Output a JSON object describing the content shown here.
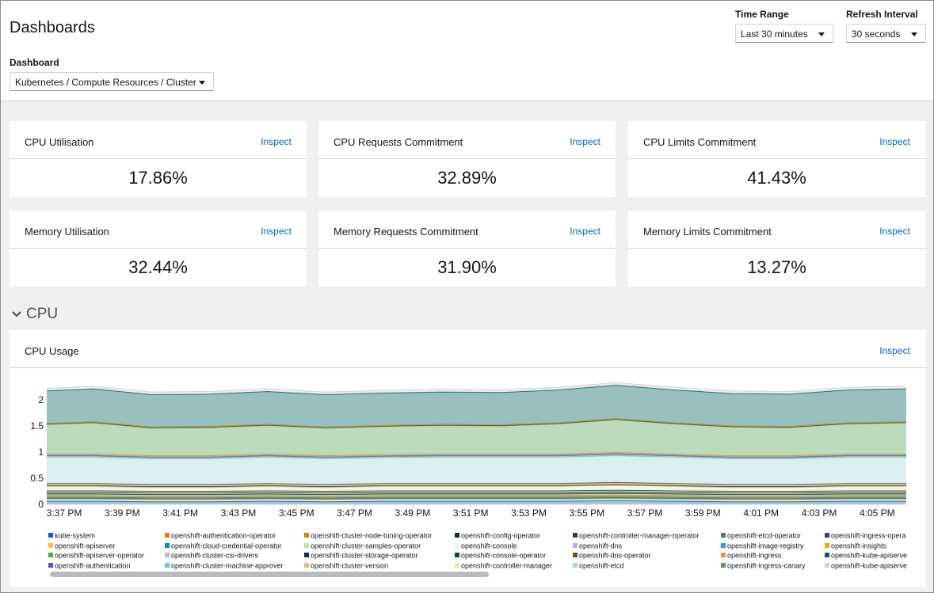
{
  "header": {
    "title": "Dashboards",
    "time_range_label": "Time Range",
    "time_range_value": "Last 30 minutes",
    "refresh_label": "Refresh Interval",
    "refresh_value": "30 seconds",
    "dashboard_label": "Dashboard",
    "dashboard_value": "Kubernetes / Compute Resources / Cluster"
  },
  "cards": [
    {
      "title": "CPU Utilisation",
      "link": "Inspect",
      "value": "17.86%"
    },
    {
      "title": "CPU Requests Commitment",
      "link": "Inspect",
      "value": "32.89%"
    },
    {
      "title": "CPU Limits Commitment",
      "link": "Inspect",
      "value": "41.43%"
    },
    {
      "title": "Memory Utilisation",
      "link": "Inspect",
      "value": "32.44%"
    },
    {
      "title": "Memory Requests Commitment",
      "link": "Inspect",
      "value": "31.90%"
    },
    {
      "title": "Memory Limits Commitment",
      "link": "Inspect",
      "value": "13.27%"
    }
  ],
  "section": "CPU",
  "panel": {
    "link": "Inspect"
  },
  "chart_data": {
    "type": "stacked-area",
    "title": "CPU Usage",
    "x": [
      936.4,
      938,
      940,
      942,
      944,
      946,
      948,
      950,
      952,
      954,
      956,
      958,
      960,
      962,
      964,
      966
    ],
    "xlim": [
      936.4,
      966
    ],
    "xticks": [
      {
        "value": 937,
        "label": "3:37 PM"
      },
      {
        "value": 939,
        "label": "3:39 PM"
      },
      {
        "value": 941,
        "label": "3:41 PM"
      },
      {
        "value": 943,
        "label": "3:43 PM"
      },
      {
        "value": 945,
        "label": "3:45 PM"
      },
      {
        "value": 947,
        "label": "3:47 PM"
      },
      {
        "value": 949,
        "label": "3:49 PM"
      },
      {
        "value": 951,
        "label": "3:51 PM"
      },
      {
        "value": 953,
        "label": "3:53 PM"
      },
      {
        "value": 955,
        "label": "3:55 PM"
      },
      {
        "value": 957,
        "label": "3:57 PM"
      },
      {
        "value": 959,
        "label": "3:59 PM"
      },
      {
        "value": 961,
        "label": "4:01 PM"
      },
      {
        "value": 963,
        "label": "4:03 PM"
      },
      {
        "value": 965,
        "label": "4:05 PM"
      }
    ],
    "ylim": [
      0,
      2.4
    ],
    "yticks": [
      0,
      0.5,
      1,
      1.5,
      2
    ],
    "series": [
      {
        "name": "kube-system",
        "color": "#0066cc",
        "values": [
          0.06,
          0.06,
          0.05,
          0.05,
          0.06,
          0.05,
          0.06,
          0.06,
          0.06,
          0.06,
          0.07,
          0.06,
          0.05,
          0.05,
          0.06,
          0.06
        ]
      },
      {
        "name": "openshift-apiserver",
        "color": "#f4c145",
        "values": [
          0.04,
          0.04,
          0.04,
          0.04,
          0.04,
          0.04,
          0.04,
          0.04,
          0.04,
          0.04,
          0.04,
          0.04,
          0.04,
          0.04,
          0.04,
          0.04
        ]
      },
      {
        "name": "openshift-apiserver-operator",
        "color": "#4cb140",
        "values": [
          0.01,
          0.01,
          0.01,
          0.01,
          0.01,
          0.01,
          0.01,
          0.01,
          0.01,
          0.01,
          0.01,
          0.01,
          0.01,
          0.01,
          0.01,
          0.01
        ]
      },
      {
        "name": "openshift-authentication",
        "color": "#5752d1",
        "values": [
          0.01,
          0.01,
          0.01,
          0.01,
          0.01,
          0.01,
          0.01,
          0.01,
          0.01,
          0.01,
          0.01,
          0.01,
          0.01,
          0.01,
          0.01,
          0.01
        ]
      },
      {
        "name": "openshift-authentication-operator",
        "color": "#ec7a08",
        "values": [
          0.01,
          0.01,
          0.01,
          0.01,
          0.01,
          0.01,
          0.01,
          0.01,
          0.01,
          0.01,
          0.01,
          0.01,
          0.01,
          0.01,
          0.01,
          0.01
        ]
      },
      {
        "name": "openshift-cloud-credential-operator",
        "color": "#009596",
        "values": [
          0.01,
          0.01,
          0.01,
          0.01,
          0.01,
          0.01,
          0.01,
          0.01,
          0.01,
          0.01,
          0.01,
          0.01,
          0.01,
          0.01,
          0.01,
          0.01
        ]
      },
      {
        "name": "openshift-cluster-csi-drivers",
        "color": "#b8bbbe",
        "values": [
          0.01,
          0.01,
          0.01,
          0.01,
          0.01,
          0.01,
          0.01,
          0.01,
          0.01,
          0.01,
          0.01,
          0.01,
          0.01,
          0.01,
          0.01,
          0.01
        ]
      },
      {
        "name": "openshift-cluster-machine-approver",
        "color": "#73bcf7",
        "values": [
          0.01,
          0.01,
          0.01,
          0.01,
          0.01,
          0.01,
          0.01,
          0.01,
          0.01,
          0.01,
          0.01,
          0.01,
          0.01,
          0.01,
          0.01,
          0.01
        ]
      },
      {
        "name": "openshift-cluster-node-tuning-operator",
        "color": "#c58c00",
        "values": [
          0.01,
          0.01,
          0.01,
          0.01,
          0.01,
          0.01,
          0.01,
          0.01,
          0.01,
          0.01,
          0.01,
          0.01,
          0.01,
          0.01,
          0.01,
          0.01
        ]
      },
      {
        "name": "openshift-cluster-samples-operator",
        "color": "#bde2b9",
        "values": [
          0.02,
          0.02,
          0.02,
          0.02,
          0.02,
          0.02,
          0.02,
          0.02,
          0.02,
          0.02,
          0.02,
          0.02,
          0.02,
          0.02,
          0.02,
          0.02
        ]
      },
      {
        "name": "openshift-cluster-storage-operator",
        "color": "#002f5d",
        "values": [
          0.01,
          0.01,
          0.01,
          0.01,
          0.01,
          0.01,
          0.01,
          0.01,
          0.01,
          0.01,
          0.01,
          0.01,
          0.01,
          0.01,
          0.01,
          0.01
        ]
      },
      {
        "name": "openshift-cluster-version",
        "color": "#f4b678",
        "values": [
          0.02,
          0.02,
          0.02,
          0.02,
          0.02,
          0.02,
          0.02,
          0.02,
          0.02,
          0.02,
          0.02,
          0.02,
          0.02,
          0.02,
          0.02,
          0.02
        ]
      },
      {
        "name": "openshift-config-operator",
        "color": "#003737",
        "values": [
          0.01,
          0.01,
          0.01,
          0.01,
          0.01,
          0.01,
          0.01,
          0.01,
          0.01,
          0.01,
          0.01,
          0.01,
          0.01,
          0.01,
          0.01,
          0.01
        ]
      },
      {
        "name": "openshift-console",
        "color": "#e7f1fa",
        "values": [
          0.02,
          0.02,
          0.02,
          0.02,
          0.02,
          0.02,
          0.02,
          0.02,
          0.02,
          0.02,
          0.02,
          0.02,
          0.02,
          0.02,
          0.02,
          0.02
        ]
      },
      {
        "name": "openshift-console-operator",
        "color": "#004d4d",
        "values": [
          0.01,
          0.01,
          0.01,
          0.01,
          0.01,
          0.01,
          0.01,
          0.01,
          0.01,
          0.01,
          0.01,
          0.01,
          0.01,
          0.01,
          0.01,
          0.01
        ]
      },
      {
        "name": "openshift-controller-manager",
        "color": "#f9e0a2",
        "values": [
          0.08,
          0.08,
          0.07,
          0.07,
          0.08,
          0.07,
          0.08,
          0.08,
          0.08,
          0.08,
          0.09,
          0.08,
          0.07,
          0.07,
          0.08,
          0.08
        ]
      },
      {
        "name": "openshift-controller-manager-operator",
        "color": "#23511e",
        "values": [
          0.02,
          0.02,
          0.02,
          0.02,
          0.02,
          0.02,
          0.02,
          0.02,
          0.02,
          0.02,
          0.02,
          0.02,
          0.02,
          0.02,
          0.02,
          0.02
        ]
      },
      {
        "name": "openshift-dns",
        "color": "#b2b0ea",
        "values": [
          0.03,
          0.03,
          0.03,
          0.03,
          0.03,
          0.03,
          0.03,
          0.03,
          0.03,
          0.03,
          0.03,
          0.03,
          0.03,
          0.03,
          0.03,
          0.03
        ]
      },
      {
        "name": "openshift-dns-operator",
        "color": "#8f4700",
        "values": [
          0.01,
          0.01,
          0.01,
          0.01,
          0.01,
          0.01,
          0.01,
          0.01,
          0.01,
          0.01,
          0.01,
          0.01,
          0.01,
          0.01,
          0.01,
          0.01
        ]
      },
      {
        "name": "openshift-etcd",
        "color": "#a2d9d9",
        "values": [
          0.5,
          0.5,
          0.49,
          0.49,
          0.5,
          0.49,
          0.49,
          0.5,
          0.5,
          0.5,
          0.51,
          0.5,
          0.49,
          0.49,
          0.5,
          0.5
        ]
      },
      {
        "name": "openshift-etcd-operator",
        "color": "#6a6e73",
        "values": [
          0.03,
          0.03,
          0.03,
          0.03,
          0.03,
          0.03,
          0.03,
          0.03,
          0.03,
          0.03,
          0.03,
          0.03,
          0.03,
          0.03,
          0.03,
          0.03
        ]
      },
      {
        "name": "openshift-image-registry",
        "color": "#2b9af3",
        "values": [
          0.01,
          0.01,
          0.01,
          0.01,
          0.01,
          0.01,
          0.01,
          0.01,
          0.01,
          0.01,
          0.01,
          0.01,
          0.01,
          0.01,
          0.01,
          0.01
        ]
      },
      {
        "name": "openshift-ingress",
        "color": "#ef9234",
        "values": [
          0.02,
          0.02,
          0.02,
          0.02,
          0.02,
          0.02,
          0.02,
          0.02,
          0.02,
          0.02,
          0.02,
          0.02,
          0.02,
          0.02,
          0.02,
          0.02
        ]
      },
      {
        "name": "openshift-ingress-canary",
        "color": "#5ba352",
        "values": [
          0.57,
          0.6,
          0.53,
          0.54,
          0.55,
          0.53,
          0.54,
          0.55,
          0.54,
          0.58,
          0.63,
          0.58,
          0.55,
          0.54,
          0.58,
          0.6
        ]
      },
      {
        "name": "openshift-ingress-opera",
        "color": "#3c3d99",
        "values": [
          0.01,
          0.01,
          0.01,
          0.01,
          0.01,
          0.01,
          0.01,
          0.01,
          0.01,
          0.01,
          0.01,
          0.01,
          0.01,
          0.01,
          0.01,
          0.01
        ]
      },
      {
        "name": "openshift-insights",
        "color": "#f0ab00",
        "values": [
          0.01,
          0.01,
          0.01,
          0.01,
          0.01,
          0.01,
          0.01,
          0.01,
          0.01,
          0.01,
          0.01,
          0.01,
          0.01,
          0.01,
          0.01,
          0.01
        ]
      },
      {
        "name": "openshift-kube-apiserve",
        "color": "#005f60",
        "values": [
          0.62,
          0.63,
          0.62,
          0.62,
          0.63,
          0.62,
          0.62,
          0.62,
          0.62,
          0.63,
          0.64,
          0.63,
          0.62,
          0.62,
          0.63,
          0.63
        ]
      },
      {
        "name": "openshift-kube-apiserve",
        "color": "#d2d2d2",
        "values": [
          0.05,
          0.05,
          0.05,
          0.05,
          0.05,
          0.05,
          0.05,
          0.05,
          0.05,
          0.05,
          0.05,
          0.05,
          0.05,
          0.05,
          0.05,
          0.05
        ]
      }
    ]
  }
}
